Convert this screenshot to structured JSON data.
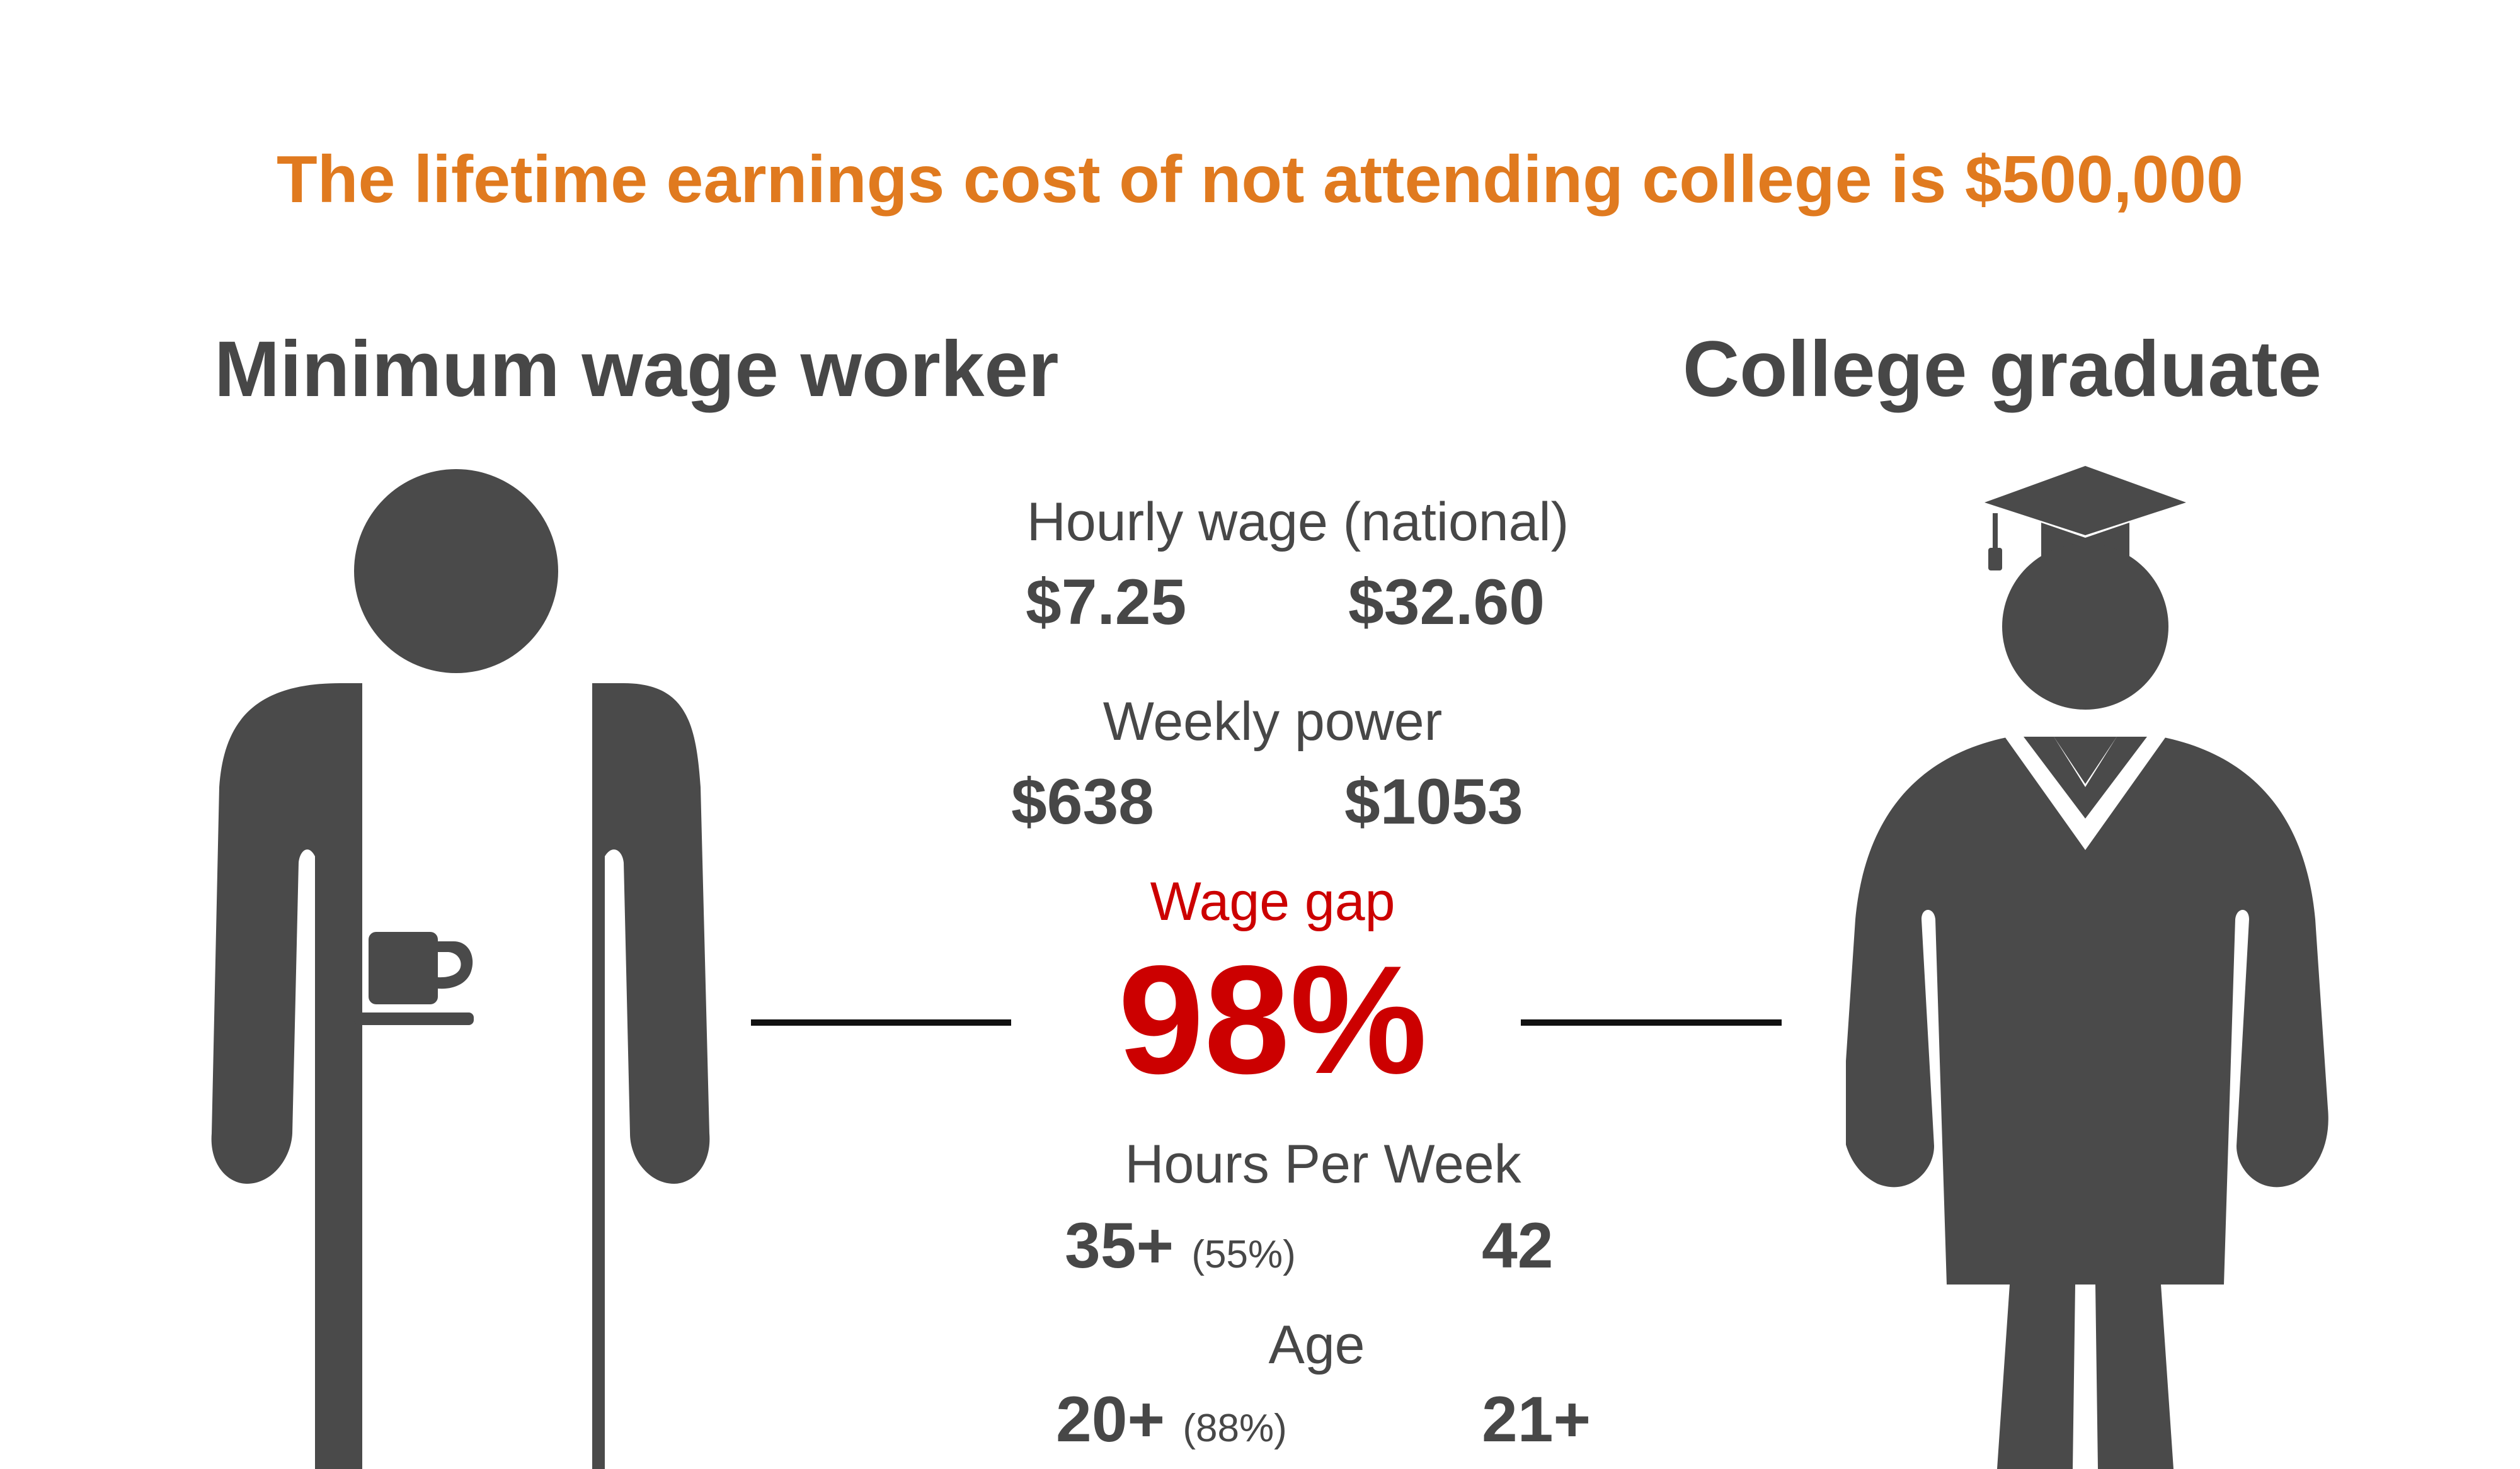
{
  "headline": "The lifetime earnings cost of not attending college is $500,000",
  "left": {
    "title": "Minimum wage worker",
    "figure_icon": "apron-worker-icon",
    "cup_icon": "coffee-cup-icon"
  },
  "right": {
    "title": "College graduate",
    "figure_icon": "graduate-icon",
    "cap_icon": "graduation-cap-icon"
  },
  "stats": {
    "hourly": {
      "label": "Hourly wage (national)",
      "worker": "$7.25",
      "graduate": "$32.60"
    },
    "weekly": {
      "label": "Weekly power",
      "worker": "$638",
      "graduate": "$1053"
    },
    "gap": {
      "label": "Wage gap",
      "value": "98%"
    },
    "hours": {
      "label": "Hours Per Week",
      "worker": "35+",
      "worker_note": "(55%)",
      "graduate": "42"
    },
    "age": {
      "label": "Age",
      "worker": "20+",
      "worker_note": "(88%)",
      "graduate": "21+"
    }
  },
  "colors": {
    "headline": "#e07a1f",
    "figure": "#4a4a4a",
    "text": "#474747",
    "gap": "#cc0000",
    "rule": "#111111"
  }
}
